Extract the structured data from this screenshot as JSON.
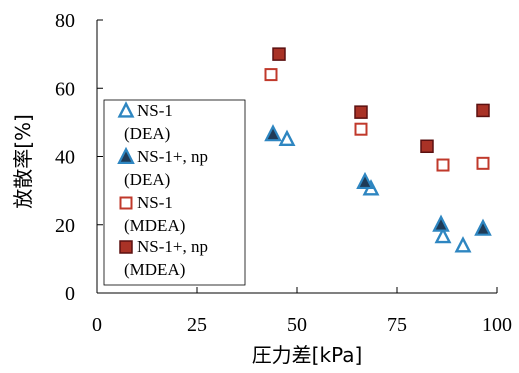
{
  "chart_data": {
    "type": "scatter",
    "xlabel": "圧力差[kPa]",
    "ylabel": "放散率[%]",
    "xlim": [
      0,
      100
    ],
    "ylim": [
      0,
      80
    ],
    "xticks": [
      "0",
      "25",
      "50",
      "75",
      "100"
    ],
    "yticks": [
      "0",
      "20",
      "40",
      "60",
      "80"
    ],
    "grid": false,
    "legend_position": "left",
    "series": [
      {
        "name": [
          "NS-1",
          "(DEA)"
        ],
        "marker": "triangle-open",
        "color": "#2e86c1",
        "points": [
          [
            47.5,
            45
          ],
          [
            86.5,
            16.5
          ],
          [
            91.5,
            13.8
          ],
          [
            68.5,
            30.5
          ]
        ]
      },
      {
        "name": [
          "NS-1+, np",
          "(DEA)"
        ],
        "marker": "triangle-filled",
        "color": "#1f3b57",
        "edge": "#2e86c1",
        "points": [
          [
            44,
            46.5
          ],
          [
            67,
            32.5
          ],
          [
            86,
            20
          ],
          [
            96.5,
            18.8
          ]
        ]
      },
      {
        "name": [
          "NS-1",
          "(MDEA)"
        ],
        "marker": "square-open",
        "color": "#c0392b",
        "points": [
          [
            43.5,
            64
          ],
          [
            66,
            48
          ],
          [
            86.5,
            37.5
          ],
          [
            96.5,
            38
          ]
        ]
      },
      {
        "name": [
          "NS-1+, np",
          "(MDEA)"
        ],
        "marker": "square-filled",
        "color": "#a93226",
        "edge": "#5b1010",
        "points": [
          [
            45.5,
            70
          ],
          [
            66,
            53
          ],
          [
            82.5,
            43
          ],
          [
            96.5,
            53.5
          ]
        ]
      }
    ]
  }
}
